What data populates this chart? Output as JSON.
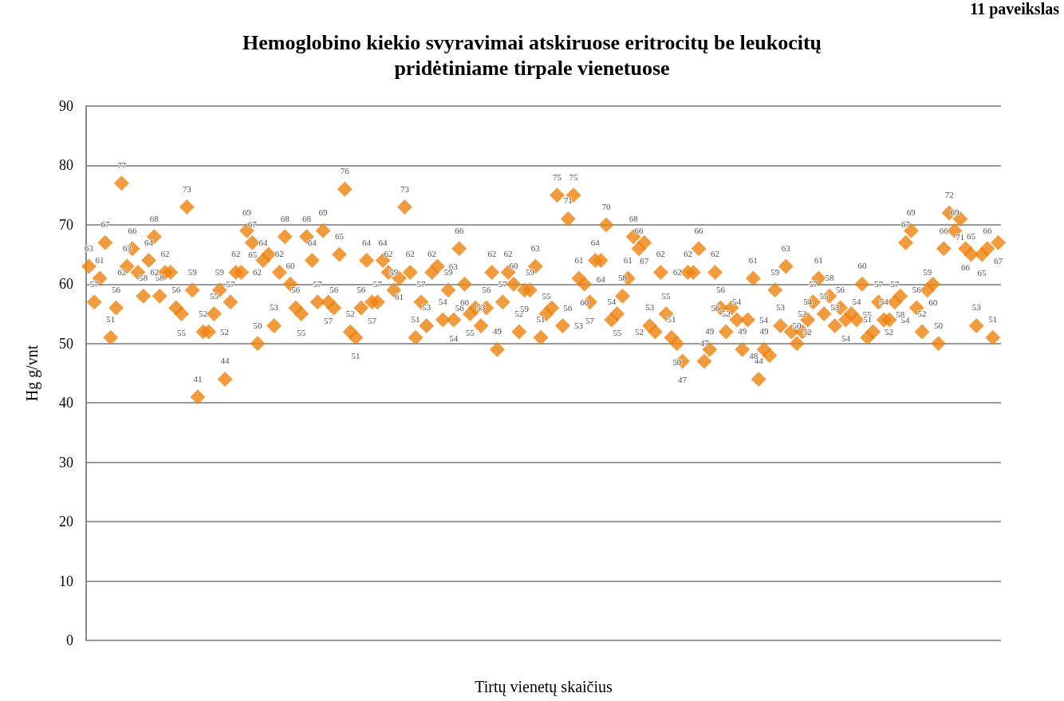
{
  "chart_data": {
    "type": "scatter",
    "title": "Hemoglobino kiekio svyravimai atskiruose eritrocitų be leukocitų\npridėtiniame tirpale vienetuose",
    "xlabel": "Tirtų vienetų skaičius",
    "ylabel": "Hg g/vnt",
    "annotations": [
      "11 paveikslas"
    ],
    "categories": [
      null,
      null,
      null,
      null,
      null,
      null,
      null,
      null,
      null,
      null,
      null,
      null,
      null,
      null,
      null,
      null,
      null,
      null,
      null,
      null,
      null,
      null,
      null,
      null,
      null,
      null,
      null,
      null,
      null,
      null,
      null,
      null,
      null,
      null,
      null,
      null,
      null,
      null,
      null,
      null,
      null,
      null,
      null,
      null,
      null,
      null,
      null,
      null,
      null,
      null,
      null,
      null,
      null,
      null,
      null,
      null,
      null,
      null,
      null,
      null,
      null,
      null,
      null,
      null,
      null,
      null,
      null,
      null,
      null,
      null,
      null,
      null,
      null,
      null,
      null,
      null,
      null,
      null,
      null,
      null,
      null,
      null,
      null,
      null,
      null,
      null,
      null,
      null,
      null,
      null,
      null,
      null,
      null,
      null,
      null,
      null,
      null,
      null,
      null,
      null,
      null,
      null,
      null,
      null,
      null,
      null,
      null,
      null,
      null,
      null,
      null,
      null,
      null,
      null,
      null,
      null,
      null,
      null,
      null,
      null,
      null,
      null,
      null,
      null,
      null,
      null,
      null,
      null,
      null,
      null,
      null,
      null,
      null,
      null,
      null,
      null,
      null,
      null,
      null,
      null,
      null,
      null,
      null,
      null,
      null,
      null,
      null,
      null,
      null,
      null,
      null,
      null,
      null,
      null,
      null,
      null,
      null,
      null,
      null,
      null,
      null,
      null,
      null,
      null,
      null,
      null,
      null,
      null
    ],
    "series": [
      {
        "color": "#ee820f",
        "values": [
          63,
          57,
          61,
          67,
          51,
          56,
          77,
          63,
          66,
          62,
          58,
          64,
          68,
          58,
          62,
          62,
          56,
          55,
          73,
          59,
          41,
          52,
          52,
          55,
          59,
          44,
          57,
          62,
          62,
          69,
          67,
          50,
          64,
          65,
          53,
          62,
          68,
          60,
          56,
          55,
          68,
          64,
          57,
          69,
          57,
          56,
          65,
          76,
          52,
          51,
          56,
          64,
          57,
          57,
          64,
          62,
          59,
          61,
          73,
          62,
          51,
          57,
          53,
          62,
          63,
          54,
          59,
          54,
          66,
          60,
          55,
          56,
          53,
          56,
          62,
          49,
          57,
          62,
          60,
          52,
          59,
          59,
          63,
          51,
          55,
          56,
          75,
          53,
          71,
          75,
          61,
          60,
          57,
          64,
          64,
          70,
          54,
          55,
          58,
          61,
          68,
          66,
          67,
          53,
          52,
          62,
          55,
          51,
          50,
          47,
          62,
          62,
          66,
          47,
          49,
          62,
          56,
          52,
          56,
          54,
          49,
          54,
          61,
          44,
          49,
          48,
          59,
          53,
          63,
          52,
          50,
          52,
          54,
          57,
          61,
          55,
          58,
          53,
          56,
          54,
          55,
          54,
          60,
          51,
          52,
          57,
          54,
          54,
          57,
          58,
          67,
          69,
          56,
          52,
          59,
          60,
          50,
          66,
          72,
          69,
          71,
          66,
          65,
          53,
          65,
          66,
          51,
          67
        ]
      }
    ],
    "ylim": [
      0,
      90
    ],
    "yticks": [
      0,
      10,
      20,
      30,
      40,
      50,
      60,
      70,
      80,
      90
    ],
    "grid": "y",
    "marker": "diamond",
    "data_labels": true
  }
}
